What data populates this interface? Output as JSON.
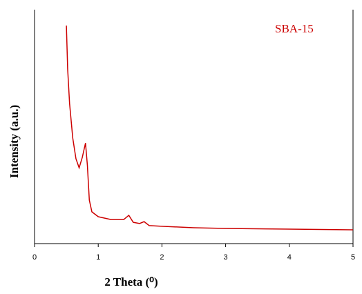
{
  "chart_data": {
    "type": "line",
    "x_label": "2 Theta (⁰)",
    "y_label": "Intensity (a.u.)",
    "series": [
      {
        "name": "SBA-15",
        "color": "#cc0000",
        "x": [
          0.5,
          0.52,
          0.55,
          0.6,
          0.65,
          0.7,
          0.75,
          0.8,
          0.83,
          0.86,
          0.9,
          1.0,
          1.2,
          1.4,
          1.48,
          1.55,
          1.65,
          1.72,
          1.8,
          2.0,
          2.5,
          3.0,
          4.0,
          5.0
        ],
        "values": [
          93.2,
          74.6,
          59.9,
          45.1,
          36.3,
          32.4,
          36.9,
          43.0,
          33.3,
          18.6,
          13.6,
          11.5,
          10.3,
          10.3,
          12.1,
          9.1,
          8.6,
          9.4,
          7.7,
          7.4,
          6.8,
          6.5,
          6.2,
          5.9
        ]
      }
    ],
    "xlim": [
      0,
      5
    ],
    "xticks": [
      0,
      1,
      2,
      3,
      4,
      5
    ],
    "ylim": [
      0,
      100
    ]
  }
}
